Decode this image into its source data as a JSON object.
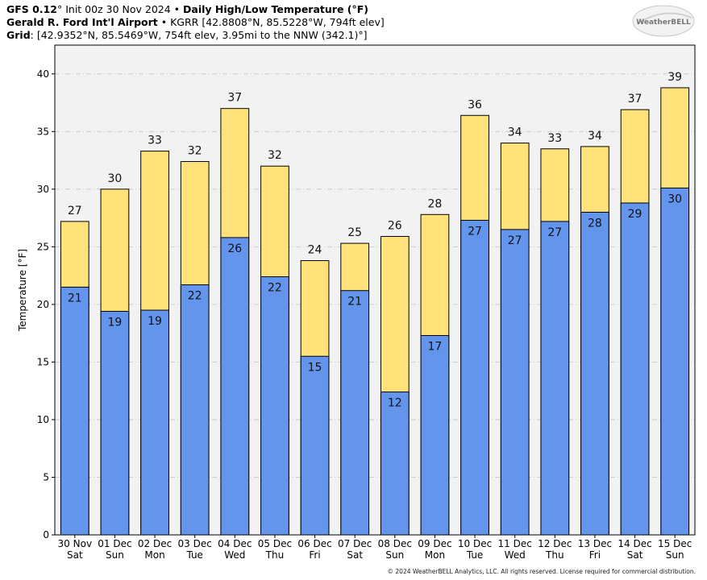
{
  "header": {
    "model": "GFS 0.12",
    "init_text": "° Init 00z 30 Nov 2024",
    "bullet": " • ",
    "product": "Daily High/Low Temperature (°F)",
    "station_name": "Gerald R. Ford Int'l Airport",
    "station_info": " • KGRR [42.8808°N, 85.5228°W, 794ft elev]",
    "grid_label": "Grid",
    "grid_info": ": [42.9352°N, 85.5469°W, 754ft elev, 3.95mi to the NNW (342.1)°]"
  },
  "logo_text": "WeatherBELL",
  "footer": "© 2024 WeatherBELL Analytics, LLC. All rights reserved. License required for commercial distribution.",
  "chart_data": {
    "type": "bar",
    "ylabel": "Temperature [°F]",
    "ylim": [
      0,
      42.5
    ],
    "yticks": [
      0,
      5,
      10,
      15,
      20,
      25,
      30,
      35,
      40
    ],
    "grid": true,
    "categories": [
      "30 Nov",
      "01 Dec",
      "02 Dec",
      "03 Dec",
      "04 Dec",
      "05 Dec",
      "06 Dec",
      "07 Dec",
      "08 Dec",
      "09 Dec",
      "10 Dec",
      "11 Dec",
      "12 Dec",
      "13 Dec",
      "14 Dec",
      "15 Dec"
    ],
    "weekdays": [
      "Sat",
      "Sun",
      "Mon",
      "Tue",
      "Wed",
      "Thu",
      "Fri",
      "Sat",
      "Sun",
      "Mon",
      "Tue",
      "Wed",
      "Thu",
      "Fri",
      "Sat",
      "Sun"
    ],
    "series": [
      {
        "role": "high",
        "color": "#FFE27A",
        "values": [
          27.2,
          30.0,
          33.3,
          32.4,
          37.0,
          32.0,
          23.8,
          25.3,
          25.9,
          27.8,
          36.4,
          34.0,
          33.5,
          33.7,
          36.9,
          38.8
        ],
        "labels": [
          "27",
          "30",
          "33",
          "32",
          "37",
          "32",
          "24",
          "25",
          "26",
          "28",
          "36",
          "34",
          "33",
          "34",
          "37",
          "39"
        ]
      },
      {
        "role": "low",
        "color": "#6495ED",
        "values": [
          21.5,
          19.4,
          19.5,
          21.7,
          25.8,
          22.4,
          15.5,
          21.2,
          12.4,
          17.3,
          27.3,
          26.5,
          27.2,
          28.0,
          28.8,
          30.1
        ],
        "labels": [
          "21",
          "19",
          "19",
          "22",
          "26",
          "22",
          "15",
          "21",
          "12",
          "17",
          "27",
          "27",
          "27",
          "28",
          "29",
          "30"
        ]
      }
    ]
  }
}
